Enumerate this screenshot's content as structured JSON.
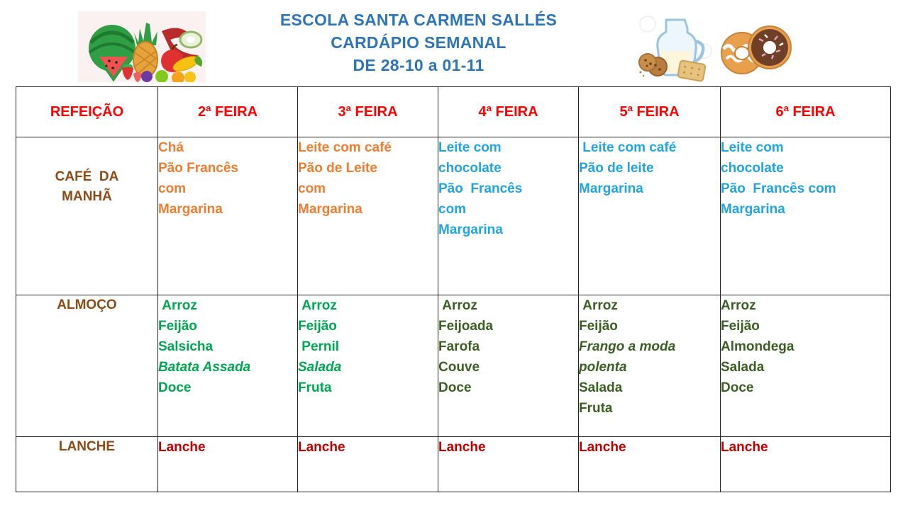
{
  "colors": {
    "title_blue": "#2E75B6",
    "header_red": "#FF0000",
    "label_brown": "#8C4A17",
    "orange": "#ED7D31",
    "cyan_blue": "#22A5DF",
    "bright_green": "#00A651",
    "dark_green": "#3B5E23",
    "dark_red": "#C00000"
  },
  "header": {
    "title_lines": [
      "ESCOLA SANTA CARMEN SALLÉS",
      "CARDÁPIO SEMANAL",
      "DE 28-10 a 01-11"
    ],
    "images": [
      {
        "id": "fruits",
        "name": "fruits-clipart-image"
      },
      {
        "id": "milk-cookies",
        "name": "milk-jug-and-cookies-image"
      },
      {
        "id": "donuts",
        "name": "donuts-image"
      }
    ]
  },
  "table": {
    "columns": [
      {
        "id": "refeicao",
        "label": "REFEIÇÃO"
      },
      {
        "id": "2a-feira",
        "label": "2ª FEIRA"
      },
      {
        "id": "3a-feira",
        "label": "3ª FEIRA"
      },
      {
        "id": "4a-feira",
        "label": "4ª FEIRA"
      },
      {
        "id": "5a-feira",
        "label": "5ª FEIRA"
      },
      {
        "id": "6a-feira",
        "label": "6ª FEIRA"
      }
    ],
    "rows": [
      {
        "id": "cafe-da-manha",
        "label_lines": [
          "CAFÉ  DA",
          "MANHÃ"
        ],
        "cells": [
          {
            "color": "orange",
            "lines": [
              {
                "t": "Chá"
              },
              {
                "t": "Pão Francês"
              },
              {
                "t": "com"
              },
              {
                "t": "Margarina"
              }
            ]
          },
          {
            "color": "orange",
            "lines": [
              {
                "t": "Leite com café"
              },
              {
                "t": "Pão de Leite"
              },
              {
                "t": "com"
              },
              {
                "t": "Margarina"
              }
            ]
          },
          {
            "color": "cyan_blue",
            "lines": [
              {
                "t": "Leite com"
              },
              {
                "t": "chocolate"
              },
              {
                "t": "Pão  Francês"
              },
              {
                "t": "com"
              },
              {
                "t": "Margarina"
              }
            ]
          },
          {
            "color": "cyan_blue",
            "lines": [
              {
                "t": " Leite com café"
              },
              {
                "t": "Pão de leite"
              },
              {
                "t": "Margarina"
              }
            ]
          },
          {
            "color": "cyan_blue",
            "lines": [
              {
                "t": "Leite com"
              },
              {
                "t": "chocolate"
              },
              {
                "t": "Pão  Francês com"
              },
              {
                "t": "Margarina"
              }
            ]
          }
        ]
      },
      {
        "id": "almoco",
        "label_lines": [
          "ALMOÇO"
        ],
        "cells": [
          {
            "color": "bright_green",
            "lines": [
              {
                "t": " Arroz"
              },
              {
                "t": "Feijão"
              },
              {
                "t": "Salsicha"
              },
              {
                "t": "Batata Assada",
                "i": true
              },
              {
                "t": "Doce"
              }
            ]
          },
          {
            "color": "bright_green",
            "lines": [
              {
                "t": " Arroz"
              },
              {
                "t": "Feijão"
              },
              {
                "t": " Pernil"
              },
              {
                "t": "Salada",
                "i": true
              },
              {
                "t": "Fruta"
              }
            ]
          },
          {
            "color": "dark_green",
            "lines": [
              {
                "t": " Arroz"
              },
              {
                "t": "Feijoada"
              },
              {
                "t": "Farofa"
              },
              {
                "t": "Couve"
              },
              {
                "t": "Doce"
              }
            ]
          },
          {
            "color": "dark_green",
            "lines": [
              {
                "t": " Arroz"
              },
              {
                "t": "Feijão"
              },
              {
                "t": "Frango a moda",
                "i": true
              },
              {
                "t": "polenta",
                "i": true
              },
              {
                "t": "Salada"
              },
              {
                "t": "Fruta"
              }
            ]
          },
          {
            "color": "dark_green",
            "lines": [
              {
                "t": "Arroz"
              },
              {
                "t": "Feijão"
              },
              {
                "t": "Almondega"
              },
              {
                "t": "Salada"
              },
              {
                "t": "Doce"
              }
            ]
          }
        ]
      },
      {
        "id": "lanche",
        "label_lines": [
          "LANCHE"
        ],
        "cells": [
          {
            "color": "dark_red",
            "lines": [
              {
                "t": "Lanche"
              }
            ]
          },
          {
            "color": "dark_red",
            "lines": [
              {
                "t": "Lanche"
              }
            ]
          },
          {
            "color": "dark_red",
            "lines": [
              {
                "t": "Lanche"
              }
            ]
          },
          {
            "color": "dark_red",
            "lines": [
              {
                "t": "Lanche"
              }
            ]
          },
          {
            "color": "dark_red",
            "lines": [
              {
                "t": "Lanche"
              }
            ]
          }
        ]
      }
    ]
  }
}
